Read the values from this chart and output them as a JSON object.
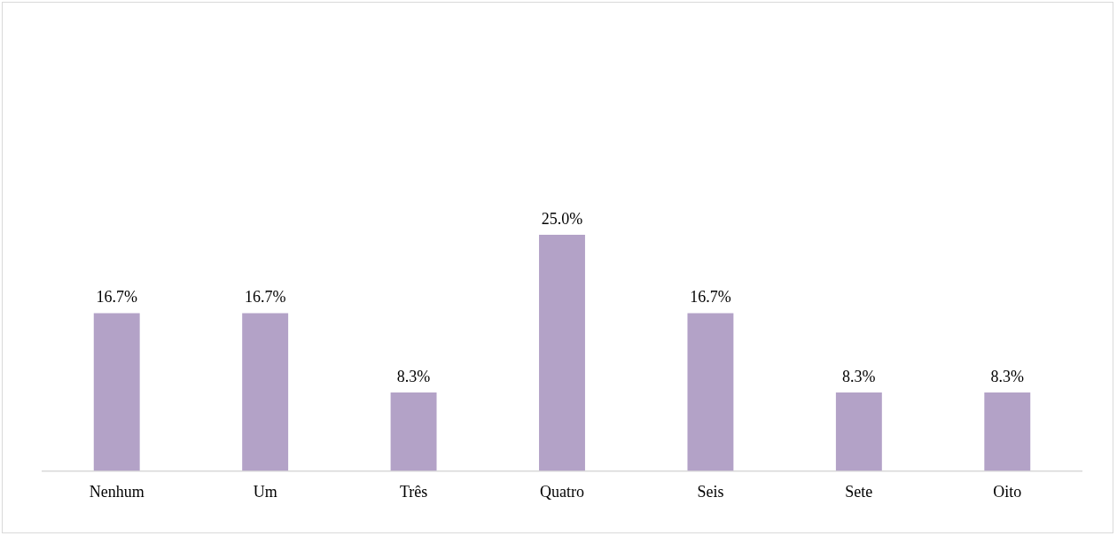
{
  "chart_data": {
    "type": "bar",
    "categories": [
      "Nenhum",
      "Um",
      "Três",
      "Quatro",
      "Seis",
      "Sete",
      "Oito"
    ],
    "values": [
      16.7,
      16.7,
      8.3,
      25.0,
      16.7,
      8.3,
      8.3
    ],
    "value_labels": [
      "16.7%",
      "16.7%",
      "8.3%",
      "25.0%",
      "16.7%",
      "8.3%",
      "8.3%"
    ],
    "color": "#b3a2c7",
    "grid": false,
    "legend": false
  }
}
